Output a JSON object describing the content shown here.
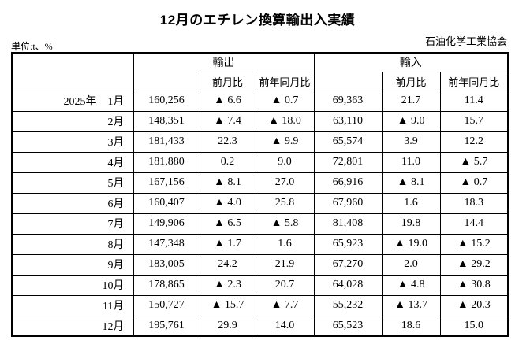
{
  "title": "12月のエチレン換算輸出入実績",
  "unit_label": "単位:t、%",
  "org_label": "石油化学工業協会",
  "table": {
    "header": {
      "export_group": "輸出",
      "import_group": "輸入",
      "mom": "前月比",
      "yoy": "前年同月比"
    },
    "rows": [
      {
        "month": "2025年　1月",
        "export_value": "160,256",
        "export_mom": "▲ 6.6",
        "export_yoy": "▲ 0.7",
        "import_value": "69,363",
        "import_mom": "21.7",
        "import_yoy": "11.4"
      },
      {
        "month": "2月",
        "export_value": "148,351",
        "export_mom": "▲ 7.4",
        "export_yoy": "▲ 18.0",
        "import_value": "63,110",
        "import_mom": "▲ 9.0",
        "import_yoy": "15.7"
      },
      {
        "month": "3月",
        "export_value": "181,433",
        "export_mom": "22.3",
        "export_yoy": "▲ 9.9",
        "import_value": "65,574",
        "import_mom": "3.9",
        "import_yoy": "12.2"
      },
      {
        "month": "4月",
        "export_value": "181,880",
        "export_mom": "0.2",
        "export_yoy": "9.0",
        "import_value": "72,801",
        "import_mom": "11.0",
        "import_yoy": "▲ 5.7"
      },
      {
        "month": "5月",
        "export_value": "167,156",
        "export_mom": "▲ 8.1",
        "export_yoy": "27.0",
        "import_value": "66,916",
        "import_mom": "▲ 8.1",
        "import_yoy": "▲ 0.7"
      },
      {
        "month": "6月",
        "export_value": "160,407",
        "export_mom": "▲ 4.0",
        "export_yoy": "25.8",
        "import_value": "67,960",
        "import_mom": "1.6",
        "import_yoy": "18.3"
      },
      {
        "month": "7月",
        "export_value": "149,906",
        "export_mom": "▲ 6.5",
        "export_yoy": "▲ 5.8",
        "import_value": "81,408",
        "import_mom": "19.8",
        "import_yoy": "14.4"
      },
      {
        "month": "8月",
        "export_value": "147,348",
        "export_mom": "▲ 1.7",
        "export_yoy": "1.6",
        "import_value": "65,923",
        "import_mom": "▲ 19.0",
        "import_yoy": "▲ 15.2"
      },
      {
        "month": "9月",
        "export_value": "183,005",
        "export_mom": "24.2",
        "export_yoy": "21.9",
        "import_value": "67,270",
        "import_mom": "2.0",
        "import_yoy": "▲ 29.2"
      },
      {
        "month": "10月",
        "export_value": "178,865",
        "export_mom": "▲ 2.3",
        "export_yoy": "20.7",
        "import_value": "64,028",
        "import_mom": "▲ 4.8",
        "import_yoy": "▲ 30.8"
      },
      {
        "month": "11月",
        "export_value": "150,727",
        "export_mom": "▲ 15.7",
        "export_yoy": "▲ 7.7",
        "import_value": "55,232",
        "import_mom": "▲ 13.7",
        "import_yoy": "▲ 20.3"
      },
      {
        "month": "12月",
        "export_value": "195,761",
        "export_mom": "29.9",
        "export_yoy": "14.0",
        "import_value": "65,523",
        "import_mom": "18.6",
        "import_yoy": "15.0"
      }
    ]
  }
}
